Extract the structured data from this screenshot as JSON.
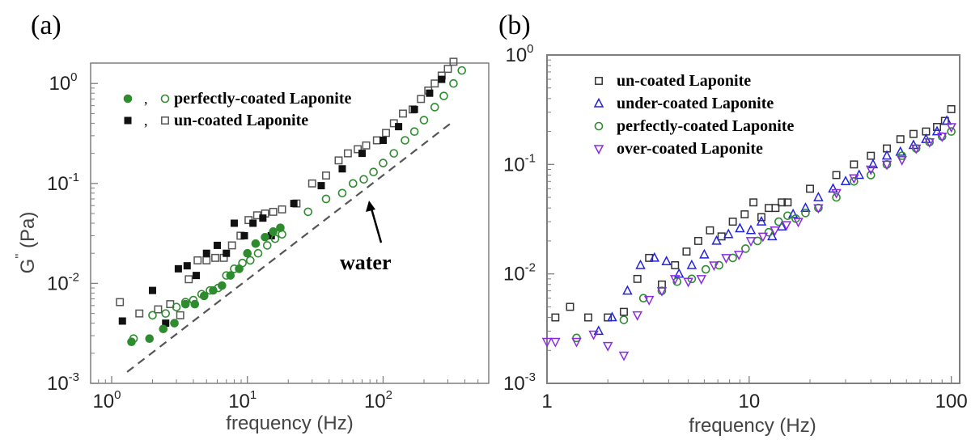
{
  "chart_data": [
    {
      "panel_label": "(a)",
      "type": "scatter",
      "xlabel": "frequency (Hz)",
      "ylabel": "G '' (Pa)",
      "xscale": "log",
      "yscale": "log",
      "xlim": [
        0.7,
        600
      ],
      "ylim": [
        0.001,
        1.6
      ],
      "x_ticks": [
        {
          "value": 1,
          "base": "10",
          "exp": "0"
        },
        {
          "value": 10,
          "base": "10",
          "exp": "1"
        },
        {
          "value": 100,
          "base": "10",
          "exp": "2"
        }
      ],
      "y_ticks": [
        {
          "value": 0.001,
          "base": "10",
          "exp": "-3"
        },
        {
          "value": 0.01,
          "base": "10",
          "exp": "-2"
        },
        {
          "value": 0.1,
          "base": "10",
          "exp": "-1"
        },
        {
          "value": 1,
          "base": "10",
          "exp": "0"
        }
      ],
      "legend_position": "top-left",
      "annotation": {
        "text": "water",
        "arrow_x": 65,
        "arrow_y": 0.085
      },
      "reference_line": {
        "color": "#555555",
        "points": [
          [
            1.3,
            0.0013
          ],
          [
            330,
            0.42
          ]
        ]
      },
      "series": [
        {
          "name": "un-coated Laponite",
          "marker": "square-open",
          "color": "#555555",
          "x": [
            1.15,
            1.6,
            2.2,
            2.7,
            3.2,
            3.7,
            4.3,
            5.0,
            5.8,
            6.7,
            7.7,
            8.9,
            10.2,
            11.8,
            13.5,
            15.5,
            18,
            23,
            30,
            38,
            47,
            55,
            65,
            75,
            90,
            105,
            120,
            140,
            165,
            190,
            215,
            240,
            270,
            300,
            330
          ],
          "y": [
            0.0065,
            0.005,
            0.0055,
            0.0062,
            0.0048,
            0.011,
            0.017,
            0.017,
            0.018,
            0.018,
            0.024,
            0.03,
            0.043,
            0.048,
            0.05,
            0.052,
            0.055,
            0.063,
            0.1,
            0.12,
            0.17,
            0.2,
            0.22,
            0.24,
            0.27,
            0.32,
            0.4,
            0.5,
            0.55,
            0.7,
            0.85,
            1.0,
            1.2,
            1.4,
            1.65
          ]
        },
        {
          "name": "un-coated Laponite (filled)",
          "marker": "square-filled",
          "color": "#111111",
          "x": [
            1.2,
            2.0,
            2.5,
            3.1,
            3.6,
            4.2,
            5.0,
            6.0,
            7.0,
            8.0,
            9.5,
            11,
            13,
            15,
            22,
            35,
            50,
            70,
            100,
            130,
            170,
            220,
            270
          ],
          "y": [
            0.0042,
            0.0085,
            0.004,
            0.014,
            0.015,
            0.012,
            0.02,
            0.024,
            0.02,
            0.04,
            0.03,
            0.04,
            0.045,
            0.03,
            0.063,
            0.095,
            0.14,
            0.2,
            0.27,
            0.37,
            0.55,
            0.8,
            1.1
          ]
        },
        {
          "name": "perfectly-coated Laponite",
          "marker": "circle-open",
          "color": "#2e8b2e",
          "x": [
            1.45,
            2.0,
            2.5,
            3.0,
            3.5,
            4.0,
            4.6,
            5.3,
            6.1,
            7.0,
            8.0,
            9.2,
            10.5,
            12,
            14,
            16,
            18,
            28,
            38,
            50,
            60,
            72,
            85,
            100,
            120,
            145,
            170,
            200,
            240,
            280,
            330,
            380
          ],
          "y": [
            0.0028,
            0.0048,
            0.005,
            0.0058,
            0.0065,
            0.0068,
            0.0078,
            0.0085,
            0.009,
            0.012,
            0.014,
            0.016,
            0.017,
            0.02,
            0.024,
            0.028,
            0.031,
            0.052,
            0.07,
            0.08,
            0.1,
            0.11,
            0.13,
            0.16,
            0.2,
            0.27,
            0.33,
            0.43,
            0.58,
            0.75,
            1.0,
            1.35
          ]
        },
        {
          "name": "perfectly-coated Laponite (filled)",
          "marker": "circle-filled",
          "color": "#2e8b2e",
          "x": [
            1.4,
            1.9,
            2.4,
            2.9,
            3.5,
            4.1,
            4.8,
            5.6,
            6.5,
            7.5,
            8.7,
            10,
            11.5,
            13.5,
            15.5,
            17.5
          ],
          "y": [
            0.0026,
            0.0028,
            0.0035,
            0.004,
            0.0062,
            0.0062,
            0.0075,
            0.0085,
            0.0095,
            0.012,
            0.014,
            0.02,
            0.025,
            0.029,
            0.033,
            0.036
          ]
        }
      ],
      "legend": [
        {
          "label": "perfectly-coated Laponite",
          "filled_marker": "circle-filled",
          "open_marker": "circle-open",
          "color": "#2e8b2e"
        },
        {
          "label": "un-coated Laponite",
          "filled_marker": "square-filled",
          "open_marker": "square-open",
          "color": "#111111"
        }
      ]
    },
    {
      "panel_label": "(b)",
      "type": "scatter",
      "xlabel": "frequency (Hz)",
      "ylabel": "",
      "xscale": "log",
      "yscale": "log",
      "xlim": [
        1,
        110
      ],
      "ylim": [
        0.001,
        1
      ],
      "x_ticks": [
        {
          "value": 1,
          "label": "1"
        },
        {
          "value": 10,
          "label": "10"
        },
        {
          "value": 100,
          "label": "100"
        }
      ],
      "y_ticks": [
        {
          "value": 0.001,
          "base": "10",
          "exp": "-3"
        },
        {
          "value": 0.01,
          "base": "10",
          "exp": "-2"
        },
        {
          "value": 0.1,
          "base": "10",
          "exp": "-1"
        },
        {
          "value": 1,
          "base": "10",
          "exp": "0"
        }
      ],
      "legend_position": "top-left",
      "series": [
        {
          "name": "un-coated Laponite",
          "marker": "square-open",
          "color": "#333333",
          "x": [
            1.1,
            1.3,
            1.6,
            2.0,
            2.4,
            2.8,
            3.2,
            3.7,
            4.3,
            4.9,
            5.6,
            6.4,
            7.3,
            8.3,
            9.5,
            10.5,
            11.5,
            12.5,
            13.5,
            14.5,
            15.5,
            20,
            27,
            33,
            40,
            48,
            56,
            65,
            75,
            85,
            93,
            100
          ],
          "y": [
            0.004,
            0.005,
            0.004,
            0.004,
            0.0045,
            0.009,
            0.014,
            0.008,
            0.012,
            0.016,
            0.02,
            0.025,
            0.022,
            0.03,
            0.035,
            0.045,
            0.033,
            0.04,
            0.04,
            0.045,
            0.045,
            0.06,
            0.08,
            0.1,
            0.12,
            0.14,
            0.17,
            0.19,
            0.2,
            0.22,
            0.25,
            0.32
          ]
        },
        {
          "name": "under-coated Laponite",
          "marker": "triangle-up-open",
          "color": "#2222dd",
          "x": [
            1.8,
            2.1,
            2.5,
            2.9,
            3.4,
            3.9,
            4.5,
            5.2,
            6.0,
            6.9,
            7.9,
            9.0,
            10.2,
            11.5,
            13,
            14.5,
            16.5,
            19,
            22,
            26,
            30,
            35,
            41,
            48,
            56,
            65,
            75,
            85,
            95
          ],
          "y": [
            0.003,
            0.004,
            0.007,
            0.012,
            0.014,
            0.013,
            0.01,
            0.012,
            0.015,
            0.02,
            0.023,
            0.026,
            0.025,
            0.03,
            0.022,
            0.027,
            0.035,
            0.04,
            0.05,
            0.06,
            0.07,
            0.08,
            0.1,
            0.12,
            0.13,
            0.15,
            0.17,
            0.2,
            0.25
          ]
        },
        {
          "name": "perfectly-coated Laponite",
          "marker": "circle-open",
          "color": "#2e8b2e",
          "x": [
            1.4,
            2.4,
            3.0,
            3.7,
            4.4,
            5.2,
            6.1,
            7.1,
            8.3,
            9.6,
            11,
            12.5,
            14,
            15.5,
            17,
            19,
            22,
            27,
            33,
            40,
            48,
            57,
            67,
            78,
            90,
            100
          ],
          "y": [
            0.0026,
            0.0038,
            0.006,
            0.007,
            0.0085,
            0.009,
            0.011,
            0.012,
            0.014,
            0.017,
            0.02,
            0.024,
            0.03,
            0.034,
            0.032,
            0.036,
            0.04,
            0.05,
            0.07,
            0.08,
            0.1,
            0.12,
            0.14,
            0.16,
            0.18,
            0.2
          ]
        },
        {
          "name": "over-coated Laponite",
          "marker": "triangle-down-open",
          "color": "#8a2be2",
          "x": [
            1.0,
            1.1,
            1.4,
            1.7,
            2.0,
            2.4,
            2.8,
            3.2,
            3.7,
            4.3,
            5.0,
            5.8,
            6.7,
            7.7,
            8.9,
            10.2,
            11.7,
            13.4,
            15.3,
            17.5,
            22,
            27,
            33,
            40,
            48,
            57,
            67,
            78,
            90,
            100
          ],
          "y": [
            0.0024,
            0.0024,
            0.0024,
            0.0028,
            0.0022,
            0.0018,
            0.0042,
            0.0058,
            0.007,
            0.009,
            0.0085,
            0.009,
            0.012,
            0.014,
            0.015,
            0.02,
            0.022,
            0.025,
            0.028,
            0.03,
            0.04,
            0.055,
            0.075,
            0.09,
            0.1,
            0.11,
            0.14,
            0.16,
            0.18,
            0.22
          ]
        }
      ]
    }
  ]
}
